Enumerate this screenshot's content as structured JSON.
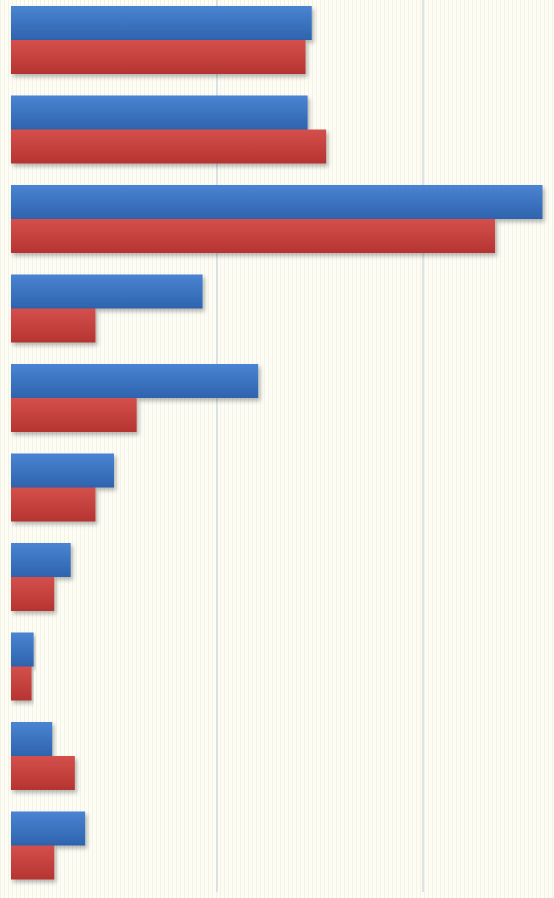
{
  "chart_data": {
    "type": "bar",
    "orientation": "horizontal",
    "title": "",
    "xlabel": "",
    "ylabel": "",
    "xlim": [
      0,
      2.6
    ],
    "grid": true,
    "series": [
      {
        "color": "#3a72c2",
        "values": [
          1.46,
          1.44,
          2.58,
          0.93,
          1.2,
          0.5,
          0.29,
          0.11,
          0.2,
          0.36
        ]
      },
      {
        "color": "#c83c3a",
        "values": [
          1.43,
          1.53,
          2.35,
          0.41,
          0.61,
          0.41,
          0.21,
          0.1,
          0.31,
          0.21
        ]
      }
    ]
  }
}
